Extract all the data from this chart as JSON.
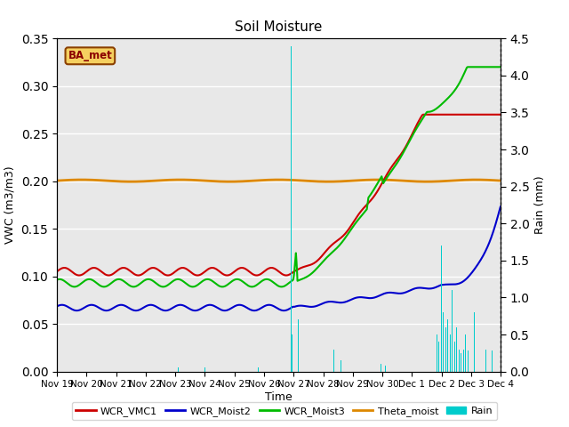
{
  "title": "Soil Moisture",
  "ylabel_left": "VWC (m3/m3)",
  "ylabel_right": "Rain (mm)",
  "xlabel": "Time",
  "ylim_left": [
    0.0,
    0.35
  ],
  "ylim_right": [
    0.0,
    4.5
  ],
  "background_color": "#ffffff",
  "plot_bg_color": "#e8e8e8",
  "station_label": "BA_met",
  "x_tick_labels": [
    "Nov 19",
    "Nov 20",
    "Nov 21",
    "Nov 22",
    "Nov 23",
    "Nov 24",
    "Nov 25",
    "Nov 26",
    "Nov 27",
    "Nov 28",
    "Nov 29",
    "Nov 30",
    "Dec 1",
    "Dec 2",
    "Dec 3",
    "Dec 4"
  ],
  "legend_entries": [
    "WCR_VMC1",
    "WCR_Moist2",
    "WCR_Moist3",
    "Theta_moist",
    "Rain"
  ],
  "legend_colors": [
    "#cc0000",
    "#0000cc",
    "#00bb00",
    "#dd8800",
    "#00cccc"
  ],
  "line_colors": {
    "WCR_VMC1": "#cc0000",
    "WCR_Moist2": "#0000cc",
    "WCR_Moist3": "#00bb00",
    "Theta_moist": "#dd8800",
    "Rain": "#00cccc"
  }
}
